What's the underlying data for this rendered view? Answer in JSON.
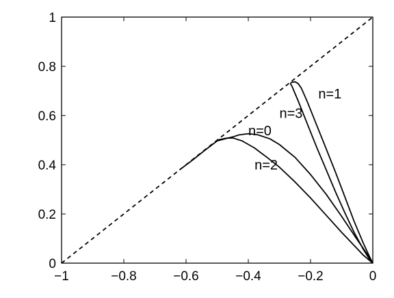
{
  "chart_data": {
    "type": "line",
    "title": "",
    "xlabel": "",
    "ylabel": "",
    "xlim": [
      -1,
      0
    ],
    "ylim": [
      0,
      1
    ],
    "grid": false,
    "xticks": [
      -1,
      -0.8,
      -0.6,
      -0.4,
      -0.2,
      0
    ],
    "xtick_labels": [
      "−1",
      "−0.8",
      "−0.6",
      "−0.4",
      "−0.2",
      "0"
    ],
    "yticks": [
      0,
      0.2,
      0.4,
      0.6,
      0.8,
      1
    ],
    "ytick_labels": [
      "0",
      "0.2",
      "0.4",
      "0.6",
      "0.8",
      "1"
    ],
    "series": [
      {
        "name": "",
        "style": "dashed",
        "x": [
          -1,
          0
        ],
        "y": [
          0,
          1
        ]
      },
      {
        "name": "n=0",
        "style": "solid",
        "x": [
          -0.62,
          -0.58,
          -0.54,
          -0.5,
          -0.46,
          -0.45,
          -0.43,
          -0.4,
          -0.37,
          -0.33,
          -0.3,
          -0.25,
          -0.2,
          -0.15,
          -0.1,
          -0.05,
          -0.02,
          0
        ],
        "y": [
          0.38,
          0.418,
          0.458,
          0.497,
          0.51,
          0.513,
          0.521,
          0.526,
          0.522,
          0.505,
          0.482,
          0.43,
          0.36,
          0.28,
          0.19,
          0.095,
          0.04,
          0
        ]
      },
      {
        "name": "n=1",
        "style": "solid",
        "x": [
          -0.265,
          -0.26,
          -0.25,
          -0.24,
          -0.23,
          -0.21,
          -0.18,
          -0.15,
          -0.12,
          -0.09,
          -0.06,
          -0.03,
          -0.01,
          0
        ],
        "y": [
          0.73,
          0.735,
          0.737,
          0.73,
          0.712,
          0.655,
          0.56,
          0.465,
          0.37,
          0.27,
          0.17,
          0.08,
          0.025,
          0
        ]
      },
      {
        "name": "n=2",
        "style": "solid",
        "x": [
          -0.5,
          -0.47,
          -0.45,
          -0.42,
          -0.38,
          -0.34,
          -0.3,
          -0.25,
          -0.2,
          -0.15,
          -0.1,
          -0.06,
          -0.03,
          0
        ],
        "y": [
          0.5,
          0.508,
          0.509,
          0.497,
          0.468,
          0.43,
          0.39,
          0.33,
          0.265,
          0.195,
          0.125,
          0.072,
          0.032,
          0
        ]
      },
      {
        "name": "n=3",
        "style": "solid",
        "x": [
          -0.265,
          -0.26,
          -0.24,
          -0.21,
          -0.18,
          -0.15,
          -0.12,
          -0.09,
          -0.06,
          -0.03,
          -0.01,
          0
        ],
        "y": [
          0.73,
          0.72,
          0.66,
          0.565,
          0.47,
          0.38,
          0.29,
          0.205,
          0.125,
          0.055,
          0.015,
          0
        ]
      }
    ],
    "annotations": [
      {
        "text": "n=1",
        "x": -0.175,
        "y": 0.67
      },
      {
        "text": "n=3",
        "x": -0.3,
        "y": 0.59
      },
      {
        "text": "n=0",
        "x": -0.4,
        "y": 0.52
      },
      {
        "text": "n=2",
        "x": -0.38,
        "y": 0.38
      }
    ]
  }
}
